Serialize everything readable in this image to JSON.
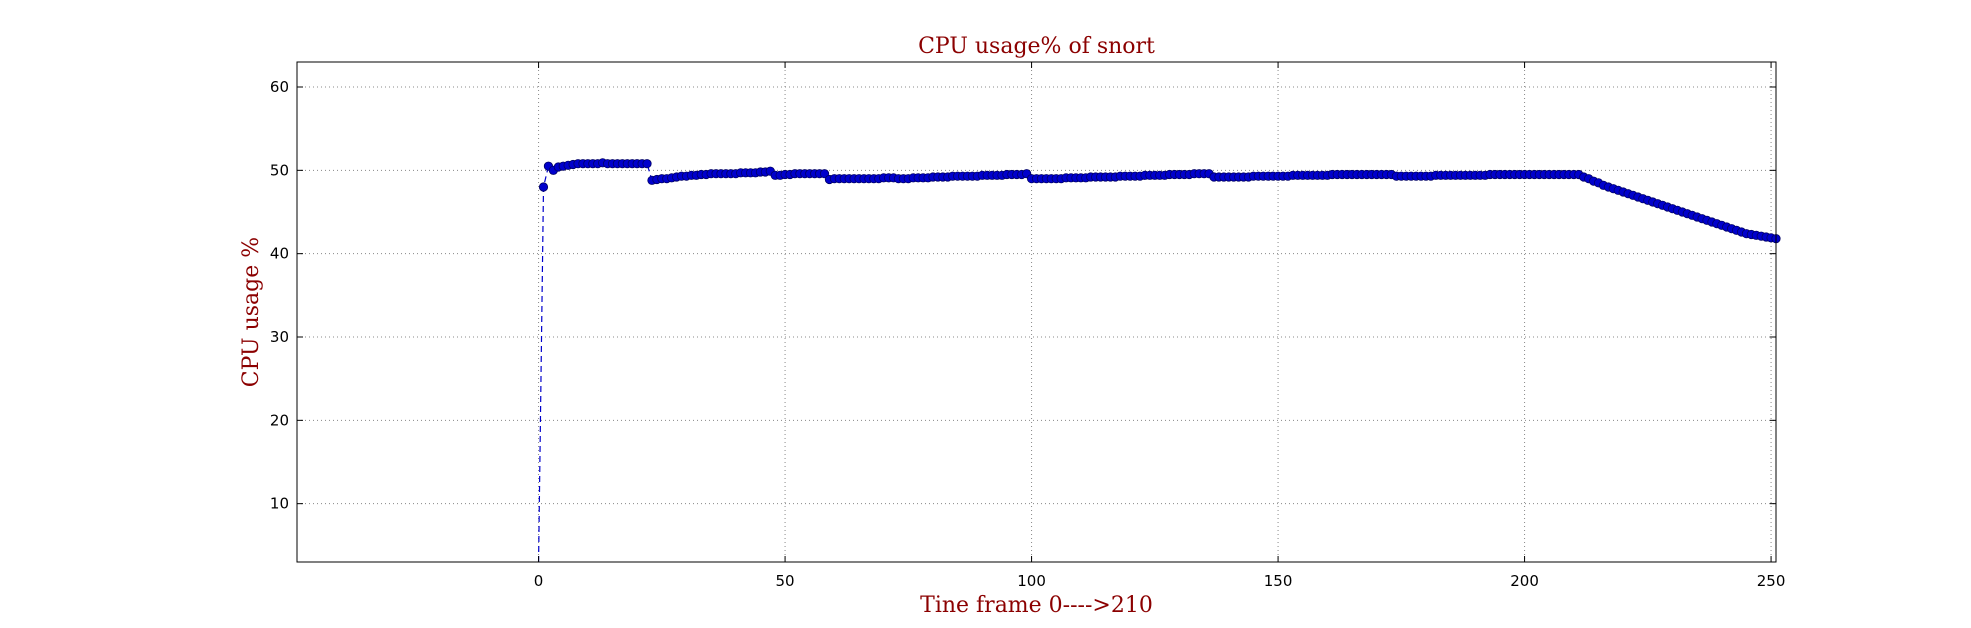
{
  "chart_data": {
    "type": "line",
    "title": "CPU usage% of snort",
    "xlabel": "Tine frame 0---->210",
    "ylabel": "CPU usage %",
    "xlim": [
      -49,
      251
    ],
    "ylim": [
      3,
      63
    ],
    "xticks": [
      0,
      50,
      100,
      150,
      200,
      250
    ],
    "yticks": [
      10,
      20,
      30,
      40,
      50,
      60
    ],
    "grid": true,
    "colors": {
      "series": "#0000cc",
      "title": "#8b0000",
      "frame": "#000000",
      "grid": "#888888"
    },
    "series": [
      {
        "line_style": "dashed",
        "marker": "circle",
        "points": [
          [
            0,
            3
          ],
          [
            1,
            48.0
          ],
          [
            2,
            50.5
          ],
          [
            3,
            50.0
          ],
          [
            4,
            50.4
          ],
          [
            5,
            50.5
          ],
          [
            6,
            50.6
          ],
          [
            7,
            50.7
          ],
          [
            8,
            50.8
          ],
          [
            9,
            50.8
          ],
          [
            10,
            50.8
          ],
          [
            11,
            50.8
          ],
          [
            12,
            50.8
          ],
          [
            13,
            50.9
          ],
          [
            14,
            50.8
          ],
          [
            15,
            50.8
          ],
          [
            16,
            50.8
          ],
          [
            17,
            50.8
          ],
          [
            18,
            50.8
          ],
          [
            19,
            50.8
          ],
          [
            20,
            50.8
          ],
          [
            21,
            50.8
          ],
          [
            22,
            50.8
          ],
          [
            23,
            48.8
          ],
          [
            24,
            48.9
          ],
          [
            25,
            49.0
          ],
          [
            26,
            49.0
          ],
          [
            27,
            49.1
          ],
          [
            28,
            49.2
          ],
          [
            29,
            49.3
          ],
          [
            30,
            49.3
          ],
          [
            31,
            49.4
          ],
          [
            32,
            49.4
          ],
          [
            33,
            49.5
          ],
          [
            34,
            49.5
          ],
          [
            35,
            49.6
          ],
          [
            36,
            49.6
          ],
          [
            37,
            49.6
          ],
          [
            38,
            49.6
          ],
          [
            39,
            49.6
          ],
          [
            40,
            49.6
          ],
          [
            41,
            49.7
          ],
          [
            42,
            49.7
          ],
          [
            43,
            49.7
          ],
          [
            44,
            49.7
          ],
          [
            45,
            49.8
          ],
          [
            46,
            49.8
          ],
          [
            47,
            49.9
          ],
          [
            48,
            49.4
          ],
          [
            49,
            49.4
          ],
          [
            50,
            49.5
          ],
          [
            51,
            49.5
          ],
          [
            52,
            49.6
          ],
          [
            53,
            49.6
          ],
          [
            54,
            49.6
          ],
          [
            55,
            49.6
          ],
          [
            56,
            49.6
          ],
          [
            57,
            49.6
          ],
          [
            58,
            49.6
          ],
          [
            59,
            48.9
          ],
          [
            60,
            49.0
          ],
          [
            61,
            49.0
          ],
          [
            62,
            49.0
          ],
          [
            63,
            49.0
          ],
          [
            64,
            49.0
          ],
          [
            65,
            49.0
          ],
          [
            66,
            49.0
          ],
          [
            67,
            49.0
          ],
          [
            68,
            49.0
          ],
          [
            69,
            49.0
          ],
          [
            70,
            49.1
          ],
          [
            71,
            49.1
          ],
          [
            72,
            49.1
          ],
          [
            73,
            49.0
          ],
          [
            74,
            49.0
          ],
          [
            75,
            49.0
          ],
          [
            76,
            49.1
          ],
          [
            77,
            49.1
          ],
          [
            78,
            49.1
          ],
          [
            79,
            49.1
          ],
          [
            80,
            49.2
          ],
          [
            81,
            49.2
          ],
          [
            82,
            49.2
          ],
          [
            83,
            49.2
          ],
          [
            84,
            49.3
          ],
          [
            85,
            49.3
          ],
          [
            86,
            49.3
          ],
          [
            87,
            49.3
          ],
          [
            88,
            49.3
          ],
          [
            89,
            49.3
          ],
          [
            90,
            49.4
          ],
          [
            91,
            49.4
          ],
          [
            92,
            49.4
          ],
          [
            93,
            49.4
          ],
          [
            94,
            49.4
          ],
          [
            95,
            49.5
          ],
          [
            96,
            49.5
          ],
          [
            97,
            49.5
          ],
          [
            98,
            49.5
          ],
          [
            99,
            49.6
          ],
          [
            100,
            49.0
          ],
          [
            101,
            49.0
          ],
          [
            102,
            49.0
          ],
          [
            103,
            49.0
          ],
          [
            104,
            49.0
          ],
          [
            105,
            49.0
          ],
          [
            106,
            49.0
          ],
          [
            107,
            49.1
          ],
          [
            108,
            49.1
          ],
          [
            109,
            49.1
          ],
          [
            110,
            49.1
          ],
          [
            111,
            49.1
          ],
          [
            112,
            49.2
          ],
          [
            113,
            49.2
          ],
          [
            114,
            49.2
          ],
          [
            115,
            49.2
          ],
          [
            116,
            49.2
          ],
          [
            117,
            49.2
          ],
          [
            118,
            49.3
          ],
          [
            119,
            49.3
          ],
          [
            120,
            49.3
          ],
          [
            121,
            49.3
          ],
          [
            122,
            49.3
          ],
          [
            123,
            49.4
          ],
          [
            124,
            49.4
          ],
          [
            125,
            49.4
          ],
          [
            126,
            49.4
          ],
          [
            127,
            49.4
          ],
          [
            128,
            49.5
          ],
          [
            129,
            49.5
          ],
          [
            130,
            49.5
          ],
          [
            131,
            49.5
          ],
          [
            132,
            49.5
          ],
          [
            133,
            49.6
          ],
          [
            134,
            49.6
          ],
          [
            135,
            49.6
          ],
          [
            136,
            49.6
          ],
          [
            137,
            49.2
          ],
          [
            138,
            49.2
          ],
          [
            139,
            49.2
          ],
          [
            140,
            49.2
          ],
          [
            141,
            49.2
          ],
          [
            142,
            49.2
          ],
          [
            143,
            49.2
          ],
          [
            144,
            49.2
          ],
          [
            145,
            49.3
          ],
          [
            146,
            49.3
          ],
          [
            147,
            49.3
          ],
          [
            148,
            49.3
          ],
          [
            149,
            49.3
          ],
          [
            150,
            49.3
          ],
          [
            151,
            49.3
          ],
          [
            152,
            49.3
          ],
          [
            153,
            49.4
          ],
          [
            154,
            49.4
          ],
          [
            155,
            49.4
          ],
          [
            156,
            49.4
          ],
          [
            157,
            49.4
          ],
          [
            158,
            49.4
          ],
          [
            159,
            49.4
          ],
          [
            160,
            49.4
          ],
          [
            161,
            49.5
          ],
          [
            162,
            49.5
          ],
          [
            163,
            49.5
          ],
          [
            164,
            49.5
          ],
          [
            165,
            49.5
          ],
          [
            166,
            49.5
          ],
          [
            167,
            49.5
          ],
          [
            168,
            49.5
          ],
          [
            169,
            49.5
          ],
          [
            170,
            49.5
          ],
          [
            171,
            49.5
          ],
          [
            172,
            49.5
          ],
          [
            173,
            49.5
          ],
          [
            174,
            49.3
          ],
          [
            175,
            49.3
          ],
          [
            176,
            49.3
          ],
          [
            177,
            49.3
          ],
          [
            178,
            49.3
          ],
          [
            179,
            49.3
          ],
          [
            180,
            49.3
          ],
          [
            181,
            49.3
          ],
          [
            182,
            49.4
          ],
          [
            183,
            49.4
          ],
          [
            184,
            49.4
          ],
          [
            185,
            49.4
          ],
          [
            186,
            49.4
          ],
          [
            187,
            49.4
          ],
          [
            188,
            49.4
          ],
          [
            189,
            49.4
          ],
          [
            190,
            49.4
          ],
          [
            191,
            49.4
          ],
          [
            192,
            49.4
          ],
          [
            193,
            49.5
          ],
          [
            194,
            49.5
          ],
          [
            195,
            49.5
          ],
          [
            196,
            49.5
          ],
          [
            197,
            49.5
          ],
          [
            198,
            49.5
          ],
          [
            199,
            49.5
          ],
          [
            200,
            49.5
          ],
          [
            201,
            49.5
          ],
          [
            202,
            49.5
          ],
          [
            203,
            49.5
          ],
          [
            204,
            49.5
          ],
          [
            205,
            49.5
          ],
          [
            206,
            49.5
          ],
          [
            207,
            49.5
          ],
          [
            208,
            49.5
          ],
          [
            209,
            49.5
          ],
          [
            210,
            49.5
          ],
          [
            211,
            49.5
          ],
          [
            212,
            49.2
          ],
          [
            213,
            49.0
          ],
          [
            214,
            48.7
          ],
          [
            215,
            48.5
          ],
          [
            216,
            48.2
          ],
          [
            217,
            48.0
          ],
          [
            218,
            47.8
          ],
          [
            219,
            47.6
          ],
          [
            220,
            47.4
          ],
          [
            221,
            47.2
          ],
          [
            222,
            47.0
          ],
          [
            223,
            46.8
          ],
          [
            224,
            46.6
          ],
          [
            225,
            46.4
          ],
          [
            226,
            46.2
          ],
          [
            227,
            46.0
          ],
          [
            228,
            45.8
          ],
          [
            229,
            45.6
          ],
          [
            230,
            45.4
          ],
          [
            231,
            45.2
          ],
          [
            232,
            45.0
          ],
          [
            233,
            44.8
          ],
          [
            234,
            44.6
          ],
          [
            235,
            44.4
          ],
          [
            236,
            44.2
          ],
          [
            237,
            44.0
          ],
          [
            238,
            43.8
          ],
          [
            239,
            43.6
          ],
          [
            240,
            43.4
          ],
          [
            241,
            43.2
          ],
          [
            242,
            43.0
          ],
          [
            243,
            42.8
          ],
          [
            244,
            42.6
          ],
          [
            245,
            42.4
          ],
          [
            246,
            42.3
          ],
          [
            247,
            42.2
          ],
          [
            248,
            42.1
          ],
          [
            249,
            42.0
          ],
          [
            250,
            41.9
          ],
          [
            251,
            41.8
          ]
        ]
      }
    ]
  }
}
